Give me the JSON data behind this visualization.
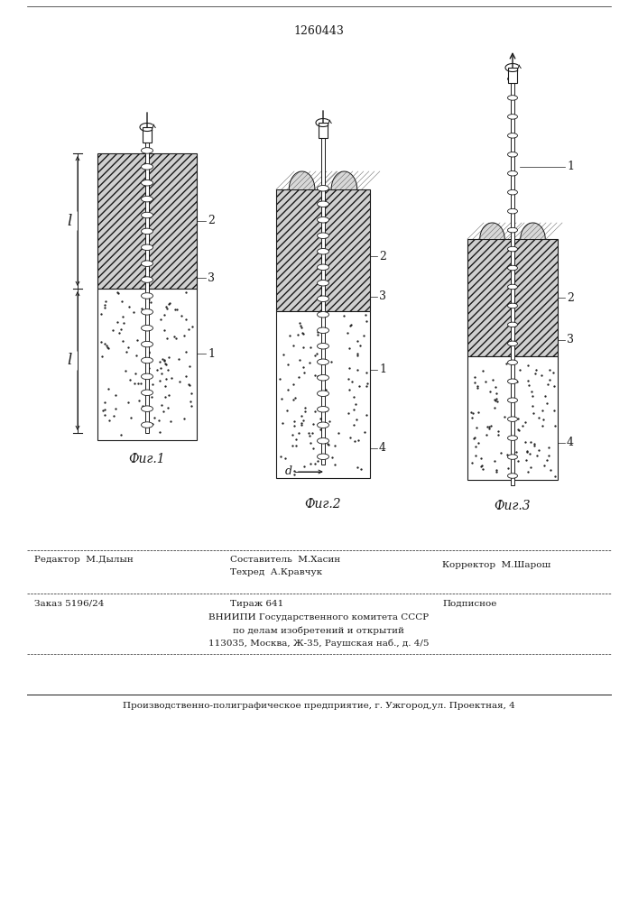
{
  "patent_number": "1260443",
  "line_color": "#1a1a1a",
  "fig1_caption": "Фиг.1",
  "fig2_caption": "Фиг.2",
  "fig3_caption": "Фиг.3",
  "editor": "Редактор  М.Дылын",
  "composer": "Составитель  М.Хасин",
  "techred": "Техред  А.Кравчук",
  "corrector": "Корректор  М.Шарош",
  "zakaz": "Заказ 5196/24",
  "tirazh": "Тираж 641",
  "podpisnoe": "Подписное",
  "vniipи": "ВНИИПИ Государственного комитета СССР",
  "po_delam": "по делам изобретений и открытий",
  "address": "113035, Москва, Ж-35, Раушская наб., д. 4/5",
  "production": "Производственно-полиграфическое предприятие, г. Ужгород,ул. Проектная, 4"
}
